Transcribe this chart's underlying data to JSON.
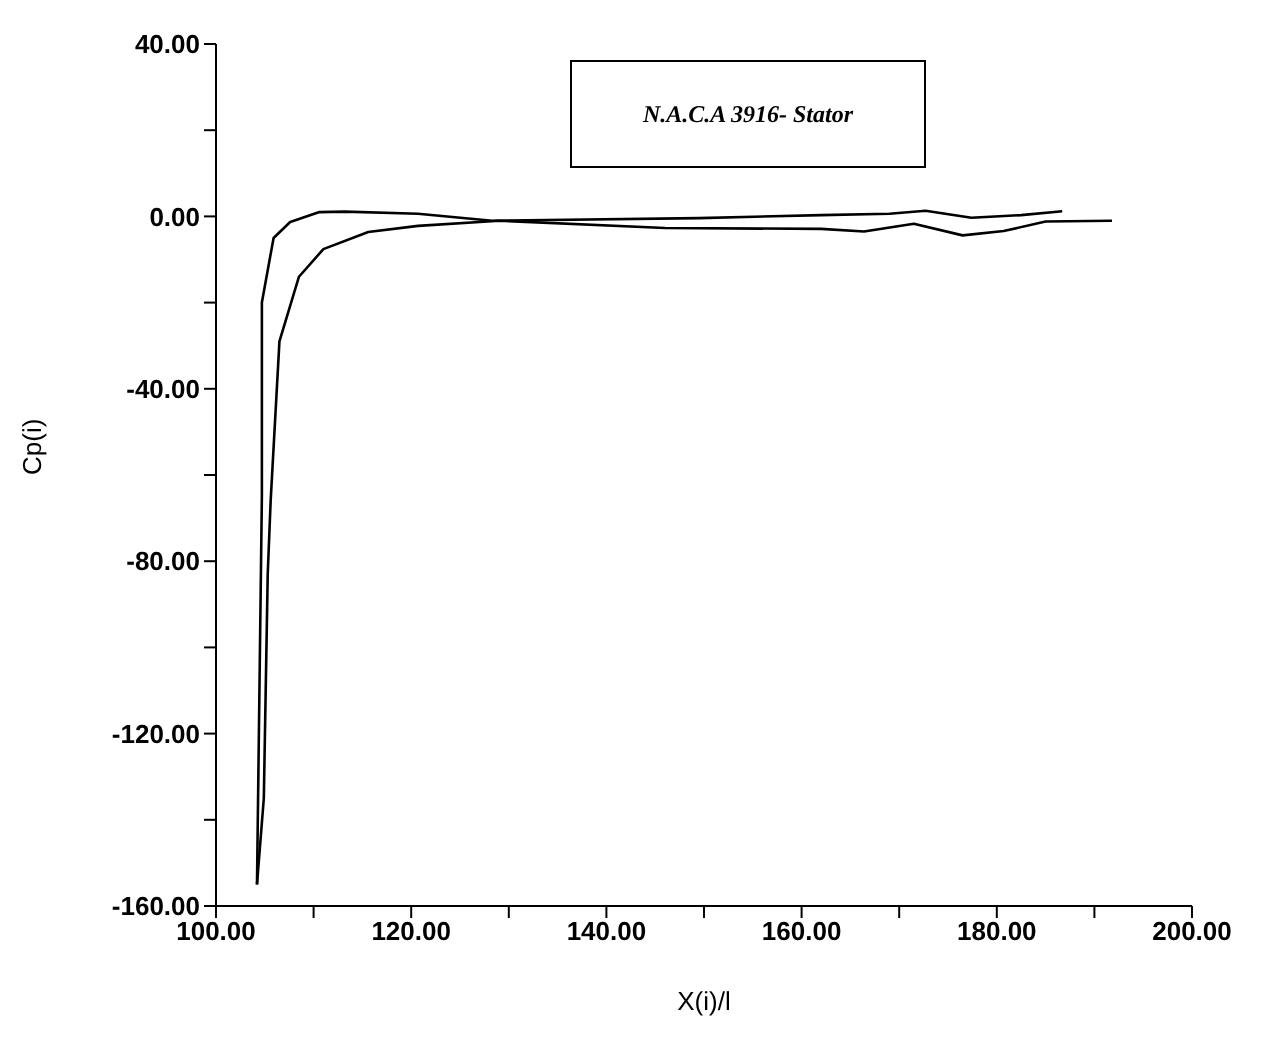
{
  "chart_data": {
    "type": "line",
    "title": "N.A.C.A 3916- Stator",
    "xlabel": "X(i)/l",
    "ylabel": "Cp(i)",
    "xlim": [
      100,
      200
    ],
    "ylim": [
      -160,
      40
    ],
    "xticks": [
      {
        "value": 100,
        "label": "100.00"
      },
      {
        "value": 110,
        "label": null
      },
      {
        "value": 120,
        "label": "120.00"
      },
      {
        "value": 130,
        "label": null
      },
      {
        "value": 140,
        "label": "140.00"
      },
      {
        "value": 150,
        "label": null
      },
      {
        "value": 160,
        "label": "160.00"
      },
      {
        "value": 170,
        "label": null
      },
      {
        "value": 180,
        "label": "180.00"
      },
      {
        "value": 190,
        "label": null
      },
      {
        "value": 200,
        "label": "200.00"
      }
    ],
    "yticks": [
      {
        "value": -160,
        "label": "-160.00"
      },
      {
        "value": -140,
        "label": null
      },
      {
        "value": -120,
        "label": "-120.00"
      },
      {
        "value": -100,
        "label": null
      },
      {
        "value": -80,
        "label": "-80.00"
      },
      {
        "value": -60,
        "label": null
      },
      {
        "value": -40,
        "label": "-40.00"
      },
      {
        "value": -20,
        "label": null
      },
      {
        "value": 0,
        "label": "0.00"
      },
      {
        "value": 20,
        "label": null
      },
      {
        "value": 40,
        "label": "40.00"
      }
    ],
    "grid": false,
    "marker": "none",
    "line_style": "solid",
    "series": [
      {
        "color": "#000000",
        "x": [
          104.2,
          104.7,
          104.7,
          105.9,
          107.6,
          110.6,
          113.2,
          120.7,
          128.3,
          149.5,
          162,
          169,
          172.7,
          177.4,
          182.5,
          186.7
        ],
        "values": [
          -155,
          -65,
          -20,
          -5,
          -1.3,
          1,
          1.1,
          0.6,
          -1,
          -0.4,
          0.3,
          0.6,
          1.3,
          -0.3,
          0.3,
          1.2
        ]
      },
      {
        "color": "#000000",
        "x": [
          104.2,
          104.9,
          105.3,
          105.6,
          106.5,
          108.5,
          111,
          115.6,
          120.7,
          129,
          146,
          162,
          166.4,
          171.5,
          176.5,
          180.7,
          185,
          191.8
        ],
        "values": [
          -155,
          -135,
          -83,
          -66,
          -29,
          -14,
          -7.6,
          -3.6,
          -2.2,
          -1,
          -2.7,
          -2.9,
          -3.5,
          -1.7,
          -4.4,
          -3.4,
          -1.2,
          -1
        ]
      }
    ]
  }
}
